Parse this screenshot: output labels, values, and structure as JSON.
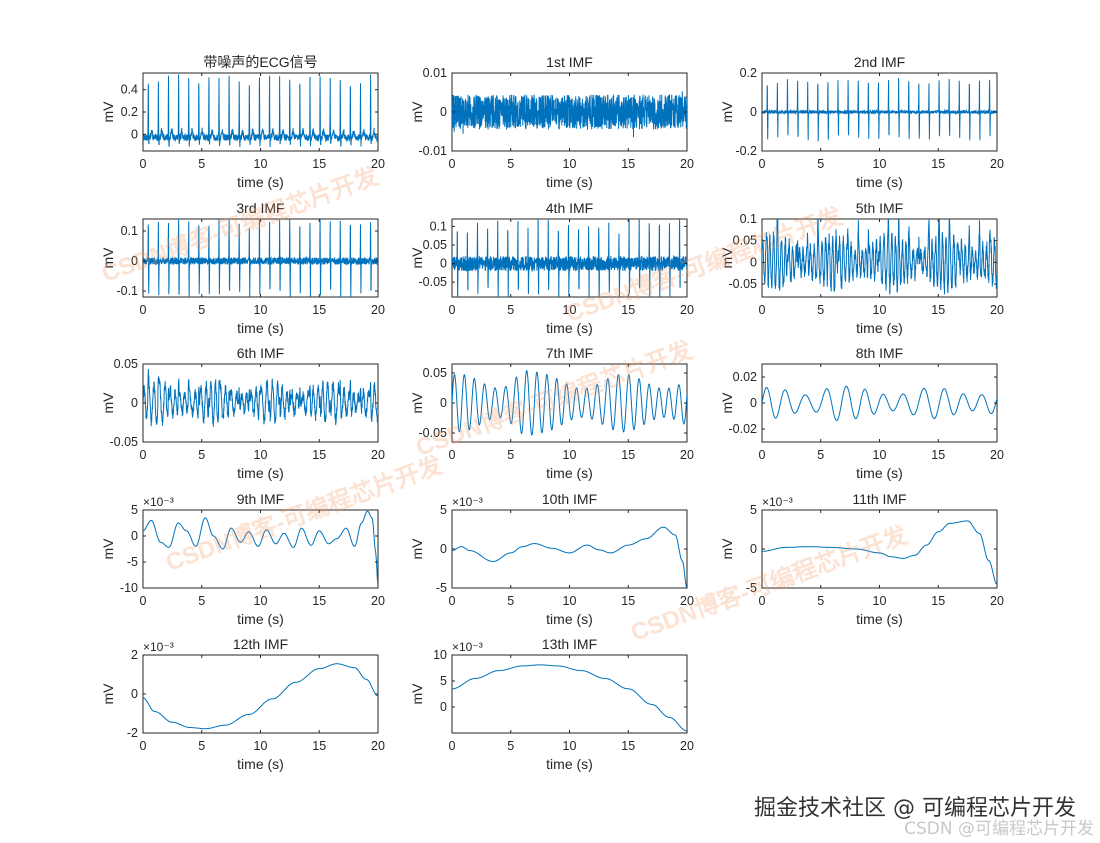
{
  "colors": {
    "signal": "#0072bd",
    "axes": "#262626",
    "watermark": "#f4965f"
  },
  "watermarks": [
    "CSDN博客-可编程芯片开发",
    "CSDN博客-可编程芯片开发",
    "CSDN博客-可编程芯片开发",
    "CSDN博客-可编程芯片开发",
    "CSDN博客-可编程芯片开发"
  ],
  "credits": {
    "juejin": "掘金技术社区 @ 可编程芯片开发",
    "csdn": "CSDN @可编程芯片开发"
  },
  "chart_data": [
    {
      "type": "line",
      "title": "带噪声的ECG信号",
      "xlabel": "time (s)",
      "ylabel": "mV",
      "xlim": [
        0,
        20
      ],
      "ylim": [
        -0.15,
        0.55
      ],
      "yticks": [
        0,
        0.2,
        0.4
      ],
      "ytick_labels": [
        "0",
        "0.2",
        "0.4"
      ],
      "xticks": [
        0,
        5,
        10,
        15,
        20
      ],
      "xtick_labels": [
        "0",
        "5",
        "10",
        "15",
        "20"
      ],
      "exponent": "",
      "signal": {
        "kind": "ecg",
        "amp": 0.55,
        "base": -0.03,
        "noise": 0.03
      }
    },
    {
      "type": "line",
      "title": "1st IMF",
      "xlabel": "time (s)",
      "ylabel": "mV",
      "xlim": [
        0,
        20
      ],
      "ylim": [
        -0.01,
        0.01
      ],
      "yticks": [
        -0.01,
        0,
        0.01
      ],
      "ytick_labels": [
        "-0.01",
        "0",
        "0.01"
      ],
      "xticks": [
        0,
        5,
        10,
        15,
        20
      ],
      "xtick_labels": [
        "0",
        "5",
        "10",
        "15",
        "20"
      ],
      "exponent": "",
      "signal": {
        "kind": "noise",
        "amp": 0.0045
      }
    },
    {
      "type": "line",
      "title": "2nd IMF",
      "xlabel": "time (s)",
      "ylabel": "mV",
      "xlim": [
        0,
        20
      ],
      "ylim": [
        -0.2,
        0.2
      ],
      "yticks": [
        -0.2,
        0,
        0.2
      ],
      "ytick_labels": [
        "-0.2",
        "0",
        "0.2"
      ],
      "xticks": [
        0,
        5,
        10,
        15,
        20
      ],
      "xtick_labels": [
        "0",
        "5",
        "10",
        "15",
        "20"
      ],
      "exponent": "",
      "signal": {
        "kind": "spikes",
        "amp": 0.17,
        "noise": 0.008
      }
    },
    {
      "type": "line",
      "title": "3rd IMF",
      "xlabel": "time (s)",
      "ylabel": "mV",
      "xlim": [
        0,
        20
      ],
      "ylim": [
        -0.12,
        0.14
      ],
      "yticks": [
        -0.1,
        0,
        0.1
      ],
      "ytick_labels": [
        "-0.1",
        "0",
        "0.1"
      ],
      "xticks": [
        0,
        5,
        10,
        15,
        20
      ],
      "xtick_labels": [
        "0",
        "5",
        "10",
        "15",
        "20"
      ],
      "exponent": "",
      "signal": {
        "kind": "spikes",
        "amp": 0.14,
        "noise": 0.012
      }
    },
    {
      "type": "line",
      "title": "4th IMF",
      "xlabel": "time (s)",
      "ylabel": "mV",
      "xlim": [
        0,
        20
      ],
      "ylim": [
        -0.09,
        0.12
      ],
      "yticks": [
        -0.05,
        0,
        0.05,
        0.1
      ],
      "ytick_labels": [
        "-0.05",
        "0",
        "0.05",
        "0.1"
      ],
      "xticks": [
        0,
        5,
        10,
        15,
        20
      ],
      "xtick_labels": [
        "0",
        "5",
        "10",
        "15",
        "20"
      ],
      "exponent": "",
      "signal": {
        "kind": "spikes",
        "amp": 0.11,
        "noise": 0.02
      }
    },
    {
      "type": "line",
      "title": "5th IMF",
      "xlabel": "time (s)",
      "ylabel": "mV",
      "xlim": [
        0,
        20
      ],
      "ylim": [
        -0.08,
        0.1
      ],
      "yticks": [
        -0.05,
        0,
        0.05,
        0.1
      ],
      "ytick_labels": [
        "-0.05",
        "0",
        "0.05",
        "0.1"
      ],
      "xticks": [
        0,
        5,
        10,
        15,
        20
      ],
      "xtick_labels": [
        "0",
        "5",
        "10",
        "15",
        "20"
      ],
      "exponent": "",
      "signal": {
        "kind": "burst",
        "amp": 0.06,
        "freq": 3.2
      }
    },
    {
      "type": "line",
      "title": "6th IMF",
      "xlabel": "time (s)",
      "ylabel": "mV",
      "xlim": [
        0,
        20
      ],
      "ylim": [
        -0.05,
        0.05
      ],
      "yticks": [
        -0.05,
        0,
        0.05
      ],
      "ytick_labels": [
        "-0.05",
        "0",
        "0.05"
      ],
      "xticks": [
        0,
        5,
        10,
        15,
        20
      ],
      "xtick_labels": [
        "0",
        "5",
        "10",
        "15",
        "20"
      ],
      "exponent": "",
      "signal": {
        "kind": "burst",
        "amp": 0.025,
        "freq": 2.3
      }
    },
    {
      "type": "line",
      "title": "7th IMF",
      "xlabel": "time (s)",
      "ylabel": "mV",
      "xlim": [
        0,
        20
      ],
      "ylim": [
        -0.065,
        0.065
      ],
      "yticks": [
        -0.05,
        0,
        0.05
      ],
      "ytick_labels": [
        "-0.05",
        "0",
        "0.05"
      ],
      "xticks": [
        0,
        5,
        10,
        15,
        20
      ],
      "xtick_labels": [
        "0",
        "5",
        "10",
        "15",
        "20"
      ],
      "exponent": "",
      "signal": {
        "kind": "osc",
        "amp": 0.048,
        "freq": 1.15
      }
    },
    {
      "type": "line",
      "title": "8th IMF",
      "xlabel": "time (s)",
      "ylabel": "mV",
      "xlim": [
        0,
        20
      ],
      "ylim": [
        -0.03,
        0.03
      ],
      "yticks": [
        -0.02,
        0,
        0.02
      ],
      "ytick_labels": [
        "-0.02",
        "0",
        "0.02"
      ],
      "xticks": [
        0,
        5,
        10,
        15,
        20
      ],
      "xtick_labels": [
        "0",
        "5",
        "10",
        "15",
        "20"
      ],
      "exponent": "",
      "signal": {
        "kind": "osc",
        "amp": 0.012,
        "freq": 0.6
      }
    },
    {
      "type": "line",
      "title": "9th IMF",
      "xlabel": "time (s)",
      "ylabel": "mV",
      "xlim": [
        0,
        20
      ],
      "ylim": [
        -10,
        5
      ],
      "yticks": [
        -10,
        -5,
        0,
        5
      ],
      "ytick_labels": [
        "-10",
        "-5",
        "0",
        "5"
      ],
      "xticks": [
        0,
        5,
        10,
        15,
        20
      ],
      "xtick_labels": [
        "0",
        "5",
        "10",
        "15",
        "20"
      ],
      "exponent": "×10⁻³",
      "signal": {
        "kind": "points",
        "x": [
          0,
          0.7,
          1.5,
          2.2,
          3,
          3.7,
          4.5,
          5.3,
          6,
          6.8,
          7.5,
          8.3,
          9,
          9.8,
          10.5,
          11.3,
          12,
          12.8,
          13.5,
          14.3,
          15,
          15.8,
          16.5,
          17.3,
          18,
          18.6,
          19.1,
          19.5,
          19.8,
          20
        ],
        "y": [
          1,
          3,
          -1.2,
          -2.2,
          2.5,
          1,
          -2,
          3.5,
          0,
          -2.5,
          1.5,
          -1.2,
          0.8,
          -2,
          1.2,
          -1.5,
          0.5,
          -2.2,
          1.5,
          -1.8,
          1,
          -1.5,
          -0.5,
          1.5,
          -2,
          2.5,
          4.8,
          3.5,
          -3,
          -9.5
        ]
      }
    },
    {
      "type": "line",
      "title": "10th IMF",
      "xlabel": "time (s)",
      "ylabel": "mV",
      "xlim": [
        0,
        20
      ],
      "ylim": [
        -5,
        5
      ],
      "yticks": [
        -5,
        0,
        5
      ],
      "ytick_labels": [
        "-5",
        "0",
        "5"
      ],
      "xticks": [
        0,
        5,
        10,
        15,
        20
      ],
      "xtick_labels": [
        "0",
        "5",
        "10",
        "15",
        "20"
      ],
      "exponent": "×10⁻³",
      "signal": {
        "kind": "points",
        "x": [
          0,
          0.8,
          1.5,
          3.5,
          5,
          6,
          7,
          8.5,
          10,
          11.5,
          12.5,
          13.5,
          15,
          16.5,
          18,
          19,
          19.6,
          20
        ],
        "y": [
          -0.2,
          0.3,
          -0.2,
          -1.6,
          -0.5,
          0.3,
          0.7,
          0.1,
          -0.5,
          0.5,
          -0.1,
          -0.5,
          0.5,
          1.3,
          2.8,
          1.8,
          -1.5,
          -5
        ]
      }
    },
    {
      "type": "line",
      "title": "11th IMF",
      "xlabel": "time (s)",
      "ylabel": "mV",
      "xlim": [
        0,
        20
      ],
      "ylim": [
        -5,
        5
      ],
      "yticks": [
        -5,
        0,
        5
      ],
      "ytick_labels": [
        "-5",
        "0",
        "5"
      ],
      "xticks": [
        0,
        5,
        10,
        15,
        20
      ],
      "xtick_labels": [
        "0",
        "5",
        "10",
        "15",
        "20"
      ],
      "exponent": "×10⁻³",
      "signal": {
        "kind": "points",
        "x": [
          0,
          2,
          4,
          6,
          8,
          10,
          11,
          12,
          13,
          14,
          15,
          16,
          17.5,
          18.5,
          19.3,
          20
        ],
        "y": [
          -0.3,
          0.2,
          0.3,
          0.2,
          0,
          -0.5,
          -1,
          -1.2,
          -0.8,
          0.5,
          2.2,
          3.3,
          3.6,
          2,
          -1.5,
          -4.5
        ]
      }
    },
    {
      "type": "line",
      "title": "12th IMF",
      "xlabel": "time (s)",
      "ylabel": "mV",
      "xlim": [
        0,
        20
      ],
      "ylim": [
        -2,
        2
      ],
      "yticks": [
        -2,
        0,
        2
      ],
      "ytick_labels": [
        "-2",
        "0",
        "2"
      ],
      "xticks": [
        0,
        5,
        10,
        15,
        20
      ],
      "xtick_labels": [
        "0",
        "5",
        "10",
        "15",
        "20"
      ],
      "exponent": "×10⁻³",
      "signal": {
        "kind": "points",
        "x": [
          0,
          1,
          2.5,
          4,
          5.3,
          7,
          9,
          11,
          13,
          15,
          16.5,
          18,
          19,
          20
        ],
        "y": [
          -0.2,
          -0.9,
          -1.45,
          -1.72,
          -1.78,
          -1.6,
          -1.05,
          -0.25,
          0.6,
          1.3,
          1.55,
          1.35,
          0.75,
          -0.1
        ]
      }
    },
    {
      "type": "line",
      "title": "13th IMF",
      "xlabel": "time (s)",
      "ylabel": "mV",
      "xlim": [
        0,
        20
      ],
      "ylim": [
        -5,
        10
      ],
      "yticks": [
        0,
        5,
        10
      ],
      "ytick_labels": [
        "0",
        "5",
        "10"
      ],
      "xticks": [
        0,
        5,
        10,
        15,
        20
      ],
      "xtick_labels": [
        "0",
        "5",
        "10",
        "15",
        "20"
      ],
      "exponent": "×10⁻³",
      "signal": {
        "kind": "points",
        "x": [
          0,
          2,
          4,
          6,
          7.5,
          9,
          11,
          13,
          15,
          17,
          18.5,
          20
        ],
        "y": [
          3.5,
          5.5,
          7,
          7.9,
          8.1,
          7.9,
          7,
          5.5,
          3.5,
          0.5,
          -2,
          -4.6
        ]
      }
    }
  ]
}
